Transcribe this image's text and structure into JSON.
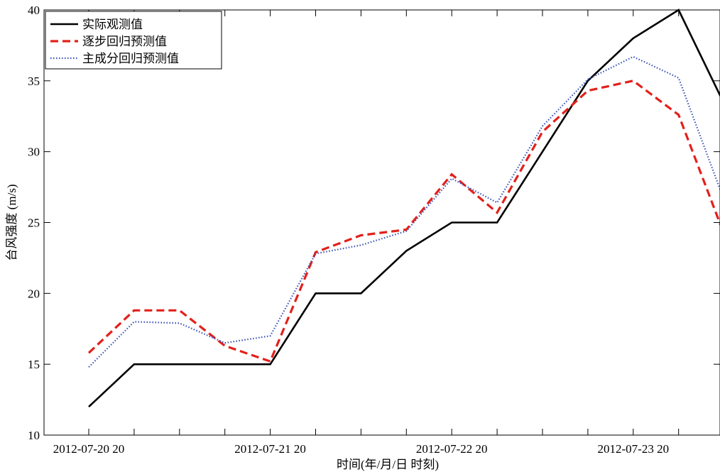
{
  "chart_data": {
    "type": "line",
    "title": "",
    "xlabel": "时间(年/月/日  时刻)",
    "ylabel": "台风强度 (m/s)",
    "ylim": [
      10,
      40
    ],
    "yticks": [
      10,
      15,
      20,
      25,
      30,
      35,
      40
    ],
    "xtick_labels": [
      "2012-07-20 20",
      "2012-07-21 20",
      "2012-07-22 20",
      "2012-07-23 20"
    ],
    "x": [
      0,
      1,
      2,
      3,
      4,
      5,
      6,
      7,
      8,
      9,
      10,
      11,
      12,
      13,
      14
    ],
    "x_unit": "6-hour steps from 2012-07-20 20",
    "legend_position": "top-left",
    "grid": false,
    "series": [
      {
        "name": "实际观测值",
        "color": "#000000",
        "dash": "solid",
        "values": [
          12,
          15,
          15,
          15,
          15,
          20,
          20,
          23,
          25,
          25,
          30,
          35,
          38,
          40,
          33.4
        ]
      },
      {
        "name": "逐步回归预测值",
        "color": "#e3201b",
        "dash": "dashed",
        "values": [
          15.8,
          18.8,
          18.8,
          16.3,
          15.2,
          22.9,
          24.1,
          24.5,
          28.4,
          25.7,
          31.4,
          34.3,
          35.0,
          32.6,
          24.2
        ]
      },
      {
        "name": "主成分回归预测值",
        "color": "#3b52b5",
        "dash": "dotted",
        "values": [
          14.8,
          18.0,
          17.9,
          16.5,
          17.0,
          22.8,
          23.4,
          24.4,
          28.1,
          26.4,
          31.8,
          35.1,
          36.7,
          35.2,
          26.6
        ]
      }
    ]
  }
}
